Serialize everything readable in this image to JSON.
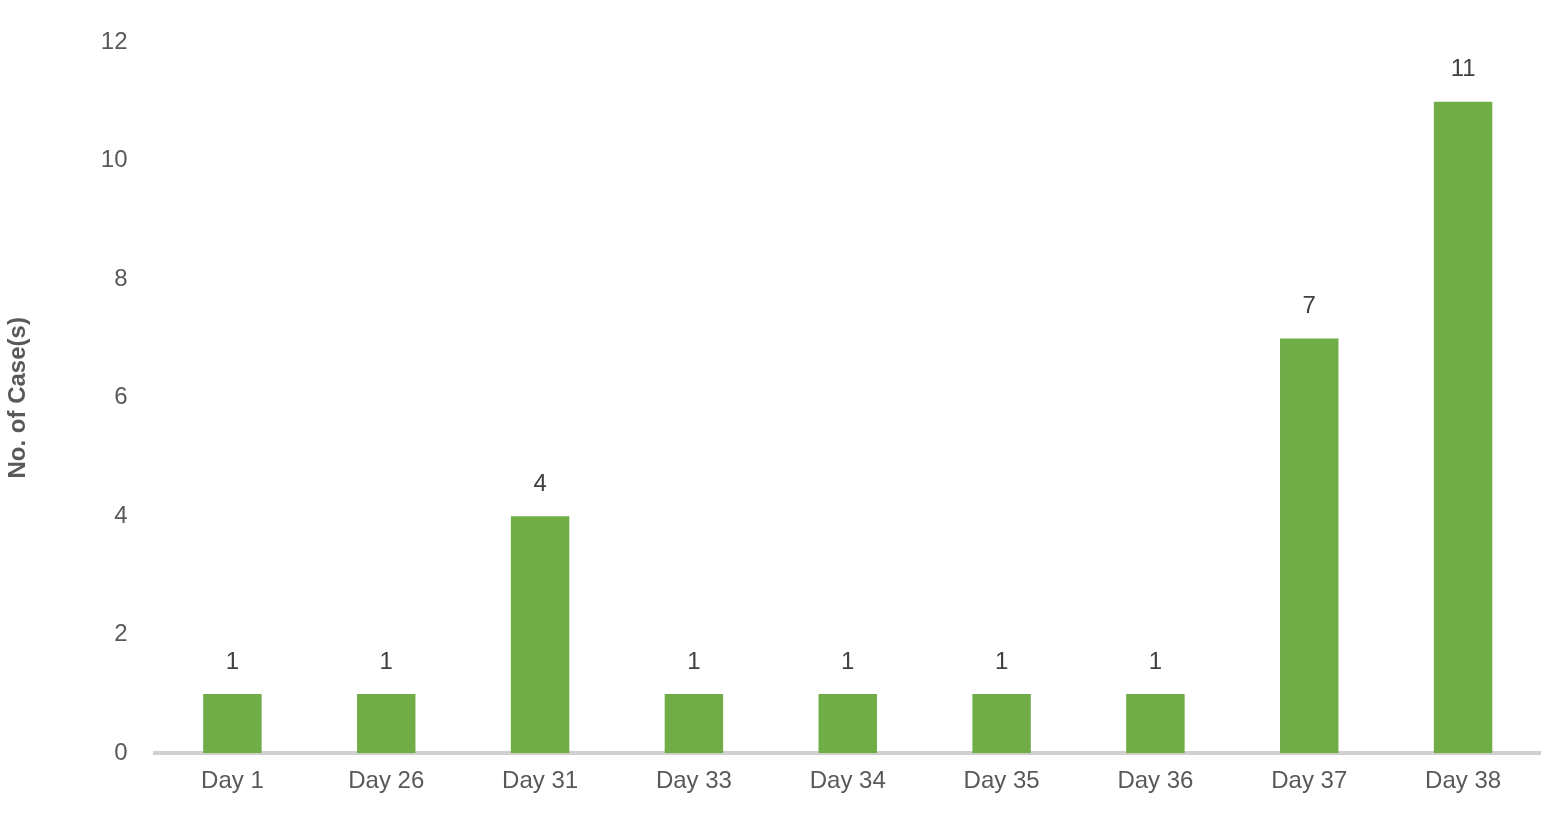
{
  "chart_data": {
    "type": "bar",
    "ylabel": "No. of Case(s)",
    "categories": [
      "Day 1",
      "Day 26",
      "Day 31",
      "Day 33",
      "Day 34",
      "Day 35",
      "Day 36",
      "Day 37",
      "Day 38"
    ],
    "values": [
      1,
      1,
      4,
      1,
      1,
      1,
      1,
      7,
      11
    ],
    "color": "#70ad47",
    "ylim": [
      0,
      12
    ],
    "yticks": [
      0,
      2,
      4,
      6,
      8,
      10,
      12
    ],
    "data_labels": true,
    "grid": false,
    "legend": false
  }
}
